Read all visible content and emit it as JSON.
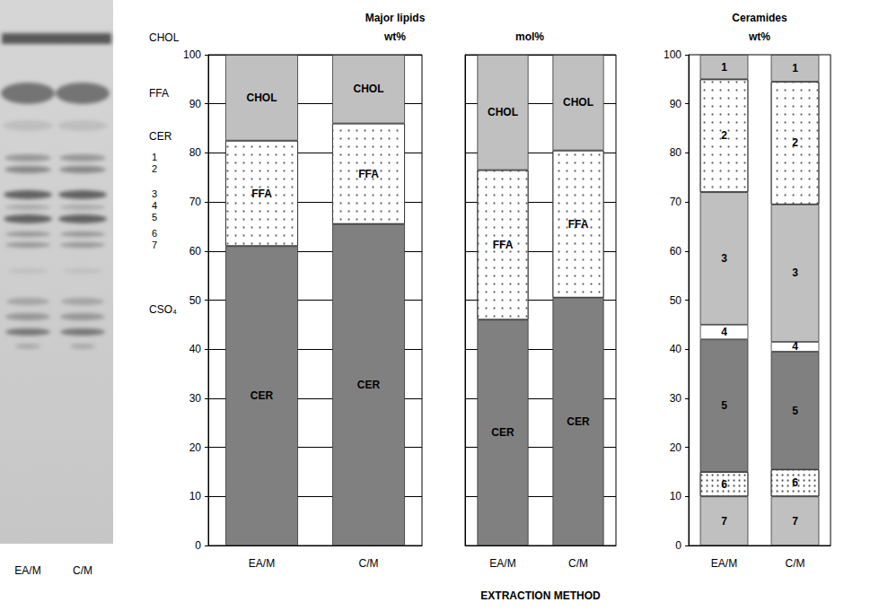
{
  "tlc_plate": {
    "lanes": [
      "EA/M",
      "C/M"
    ],
    "bands": [
      "CHOL",
      "FFA",
      "CER",
      "1",
      "2",
      "3",
      "4",
      "5",
      "6",
      "7",
      "CSO₄"
    ]
  },
  "chart_data": [
    {
      "type": "bar",
      "title": "Major lipids",
      "subtitle": "wt%",
      "categories": [
        "EA/M",
        "C/M"
      ],
      "stacked": true,
      "grid": true,
      "ylim": [
        0,
        100
      ],
      "yticks": [
        0,
        10,
        20,
        30,
        40,
        50,
        60,
        70,
        80,
        90,
        100
      ],
      "series": [
        {
          "name": "CER",
          "color": "#808080",
          "values": [
            61,
            65.5
          ]
        },
        {
          "name": "FFA",
          "color": "#ffffff",
          "marker": "dots",
          "values": [
            21.5,
            20.5
          ]
        },
        {
          "name": "CHOL",
          "color": "#c0c0c0",
          "values": [
            17.5,
            14
          ]
        }
      ]
    },
    {
      "type": "bar",
      "subtitle": "mol%",
      "xlabel": "EXTRACTION METHOD",
      "categories": [
        "EA/M",
        "C/M"
      ],
      "stacked": true,
      "grid": true,
      "tick_labels": "x",
      "ylim": [
        0,
        100
      ],
      "yticks": [
        0,
        10,
        20,
        30,
        40,
        50,
        60,
        70,
        80,
        90,
        100
      ],
      "series": [
        {
          "name": "CER",
          "color": "#808080",
          "values": [
            46,
            50.5
          ]
        },
        {
          "name": "FFA",
          "color": "#ffffff",
          "marker": "dots",
          "values": [
            30.5,
            30
          ]
        },
        {
          "name": "CHOL",
          "color": "#c0c0c0",
          "values": [
            23.5,
            19.5
          ]
        }
      ]
    },
    {
      "type": "bar",
      "title": "Ceramides",
      "subtitle": "wt%",
      "categories": [
        "EA/M",
        "C/M"
      ],
      "stacked": true,
      "grid": false,
      "ylim": [
        0,
        100
      ],
      "yticks": [
        0,
        10,
        20,
        30,
        40,
        50,
        60,
        70,
        80,
        90,
        100
      ],
      "series": [
        {
          "name": "7",
          "color": "#c0c0c0",
          "values": [
            10,
            10
          ]
        },
        {
          "name": "6",
          "color": "#ffffff",
          "marker": "dense_dots",
          "values": [
            5,
            5.5
          ]
        },
        {
          "name": "5",
          "color": "#808080",
          "values": [
            27,
            24
          ]
        },
        {
          "name": "4",
          "color": "#ffffff",
          "values": [
            3,
            2
          ]
        },
        {
          "name": "3",
          "color": "#c0c0c0",
          "values": [
            27,
            28
          ]
        },
        {
          "name": "2",
          "color": "#ffffff",
          "marker": "dots",
          "values": [
            23,
            25
          ]
        },
        {
          "name": "1",
          "color": "#c0c0c0",
          "values": [
            5,
            5.5
          ]
        }
      ]
    }
  ]
}
